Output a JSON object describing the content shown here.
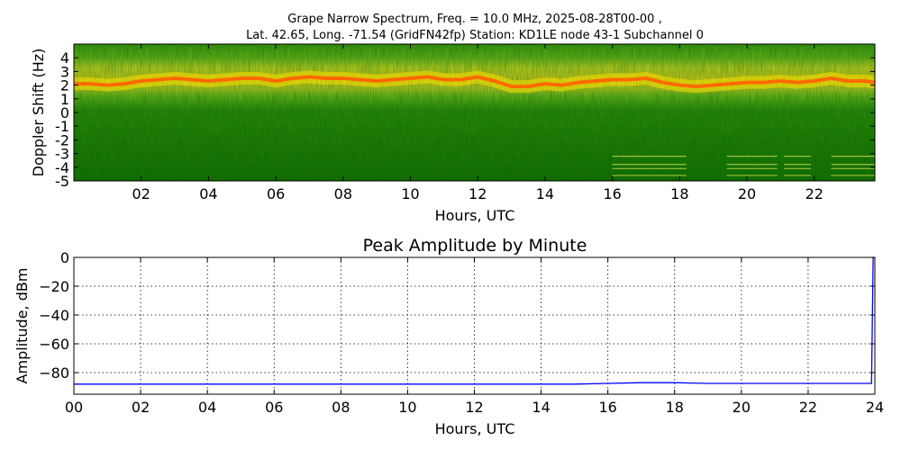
{
  "chart_data": [
    {
      "type": "heatmap",
      "title_line1": "Grape Narrow Spectrum, Freq. = 10.0 MHz, 2025-08-28T00-00 ,",
      "title_line2": "Lat.  42.65, Long. -71.54 (GridFN42fp) Station: KD1LE node 43-1 Subchannel 0",
      "xlabel": "Hours, UTC",
      "ylabel": "Doppler Shift (Hz)",
      "xlim": [
        0,
        23.8
      ],
      "ylim": [
        -5,
        5
      ],
      "xticks": [
        2,
        4,
        6,
        8,
        10,
        12,
        14,
        16,
        18,
        20,
        22
      ],
      "xtick_labels": [
        "02",
        "04",
        "06",
        "08",
        "10",
        "12",
        "14",
        "16",
        "18",
        "20",
        "22"
      ],
      "yticks": [
        -5,
        -4,
        -3,
        -2,
        -1,
        0,
        1,
        2,
        3,
        4
      ],
      "ytick_labels": [
        "-5",
        "-4",
        "-3",
        "-2",
        "-1",
        "0",
        "1",
        "2",
        "3",
        "4"
      ],
      "carrier_trace": {
        "x": [
          0,
          0.5,
          1,
          1.5,
          2,
          2.5,
          3,
          3.5,
          4,
          4.5,
          5,
          5.5,
          6,
          6.5,
          7,
          7.5,
          8,
          8.5,
          9,
          9.5,
          10,
          10.5,
          11,
          11.5,
          12,
          12.5,
          13,
          13.5,
          14,
          14.5,
          15,
          15.5,
          16,
          16.5,
          17,
          17.5,
          18,
          18.5,
          19,
          19.5,
          20,
          20.5,
          21,
          21.5,
          22,
          22.5,
          23,
          23.5,
          23.8
        ],
        "y": [
          2.1,
          2.1,
          2.0,
          2.1,
          2.3,
          2.4,
          2.5,
          2.4,
          2.3,
          2.4,
          2.5,
          2.5,
          2.3,
          2.5,
          2.6,
          2.5,
          2.5,
          2.4,
          2.3,
          2.4,
          2.5,
          2.6,
          2.4,
          2.4,
          2.6,
          2.3,
          1.9,
          1.9,
          2.1,
          2.0,
          2.2,
          2.3,
          2.4,
          2.4,
          2.5,
          2.2,
          2.0,
          1.9,
          2.0,
          2.1,
          2.2,
          2.2,
          2.3,
          2.2,
          2.3,
          2.5,
          2.3,
          2.3,
          2.2
        ]
      },
      "interference_bands": [
        {
          "x_start": 16,
          "x_end": 18.2,
          "y": [
            -3.2,
            -3.8,
            -4.1,
            -4.6
          ]
        },
        {
          "x_start": 19.4,
          "x_end": 20.9,
          "y": [
            -3.2,
            -3.8,
            -4.1,
            -4.6
          ]
        },
        {
          "x_start": 21.1,
          "x_end": 21.9,
          "y": [
            -3.2,
            -3.8,
            -4.1,
            -4.6
          ]
        },
        {
          "x_start": 22.5,
          "x_end": 23.8,
          "y": [
            -3.2,
            -3.8,
            -4.1,
            -4.6
          ]
        }
      ]
    },
    {
      "type": "line",
      "title": "Peak Amplitude by Minute",
      "xlabel": "Hours, UTC",
      "ylabel": "Amplitude, dBm",
      "xlim": [
        0,
        24
      ],
      "ylim": [
        -95,
        0
      ],
      "xticks": [
        0,
        2,
        4,
        6,
        8,
        10,
        12,
        14,
        16,
        18,
        20,
        22,
        24
      ],
      "xtick_labels": [
        "00",
        "02",
        "04",
        "06",
        "08",
        "10",
        "12",
        "14",
        "16",
        "18",
        "20",
        "22",
        "24"
      ],
      "yticks": [
        -80,
        -60,
        -40,
        -20,
        0
      ],
      "ytick_labels": [
        "−80",
        "−60",
        "−40",
        "−20",
        "0"
      ],
      "grid": true,
      "series": [
        {
          "color": "#0000ff",
          "x": [
            0,
            1,
            2,
            3,
            4,
            5,
            6,
            7,
            8,
            9,
            10,
            11,
            12,
            13,
            14,
            15,
            16,
            17,
            18,
            19,
            20,
            21,
            22,
            23,
            23.9,
            23.95,
            24
          ],
          "y": [
            -88,
            -88,
            -88,
            -88,
            -88,
            -88,
            -88,
            -88,
            -88,
            -88,
            -88,
            -88,
            -88,
            -88,
            -88,
            -88,
            -87.5,
            -87,
            -87,
            -87.5,
            -87.5,
            -87.5,
            -87.5,
            -87.5,
            -87.5,
            0,
            0
          ]
        }
      ]
    }
  ]
}
